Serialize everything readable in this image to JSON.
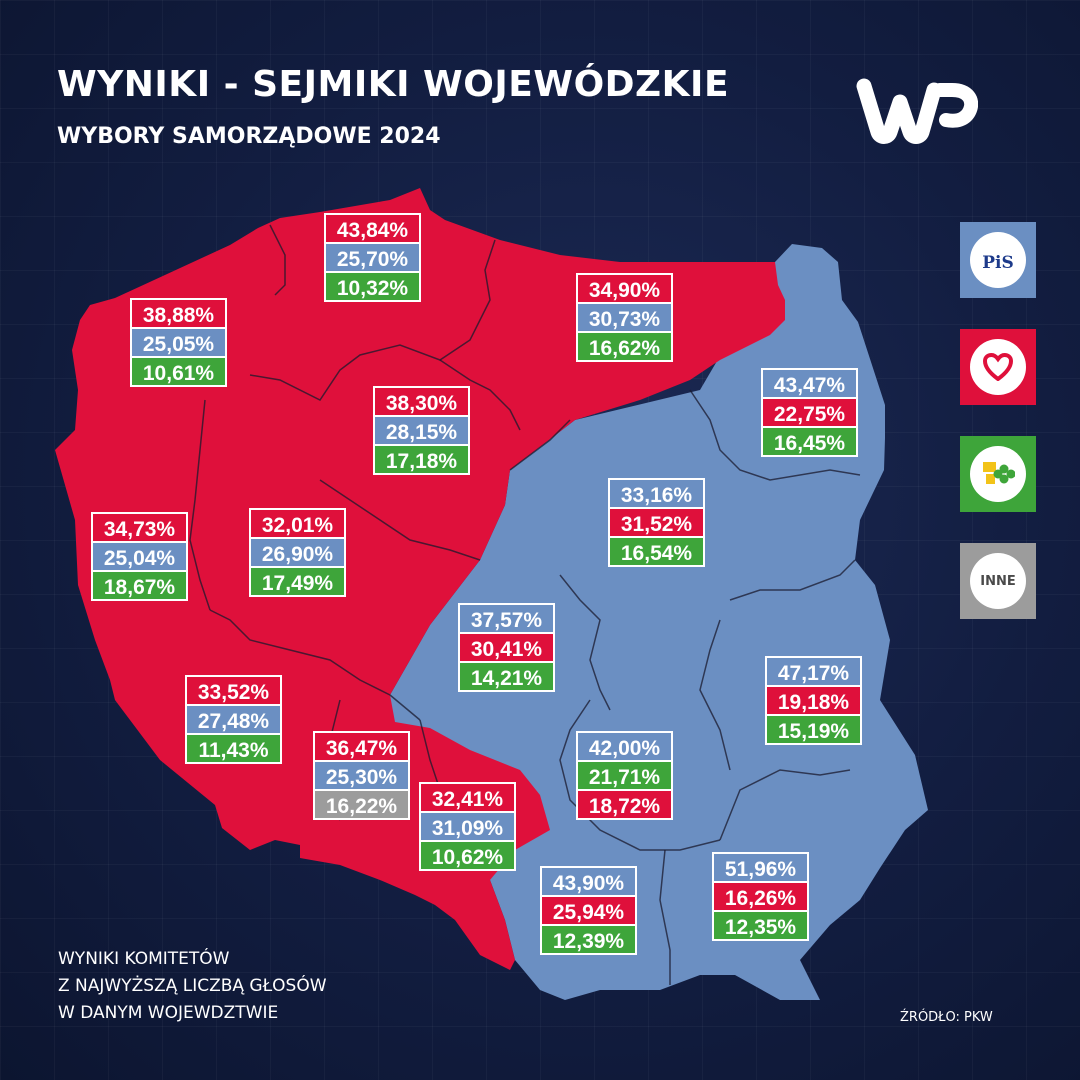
{
  "header": {
    "title": "WYNIKI - SEJMIKI WOJEWÓDZKIE",
    "subtitle": "WYBORY SAMORZĄDOWE  2024"
  },
  "colors": {
    "pis": "#6b8fc2",
    "ko": "#df103b",
    "td": "#3ea53a",
    "inne": "#9c9c9c",
    "background": "#142045"
  },
  "legend": [
    {
      "key": "pis",
      "label": "PiS",
      "icon": "pis-logo-icon"
    },
    {
      "key": "ko",
      "label": "",
      "icon": "heart-icon"
    },
    {
      "key": "td",
      "label": "",
      "icon": "trzecia-droga-icon"
    },
    {
      "key": "inne",
      "label": "INNE",
      "icon": "inne-icon"
    }
  ],
  "regions": [
    {
      "name": "zachodniopomorskie",
      "winner": "ko",
      "results": [
        {
          "party": "ko",
          "value": "38,88%"
        },
        {
          "party": "pis",
          "value": "25,05%"
        },
        {
          "party": "td",
          "value": "10,61%"
        }
      ]
    },
    {
      "name": "pomorskie",
      "winner": "ko",
      "results": [
        {
          "party": "ko",
          "value": "43,84%"
        },
        {
          "party": "pis",
          "value": "25,70%"
        },
        {
          "party": "td",
          "value": "10,32%"
        }
      ]
    },
    {
      "name": "warmińsko-mazurskie",
      "winner": "ko",
      "results": [
        {
          "party": "ko",
          "value": "34,90%"
        },
        {
          "party": "pis",
          "value": "30,73%"
        },
        {
          "party": "td",
          "value": "16,62%"
        }
      ]
    },
    {
      "name": "podlaskie",
      "winner": "pis",
      "results": [
        {
          "party": "pis",
          "value": "43,47%"
        },
        {
          "party": "ko",
          "value": "22,75%"
        },
        {
          "party": "td",
          "value": "16,45%"
        }
      ]
    },
    {
      "name": "kujawsko-pomorskie",
      "winner": "ko",
      "results": [
        {
          "party": "ko",
          "value": "38,30%"
        },
        {
          "party": "pis",
          "value": "28,15%"
        },
        {
          "party": "td",
          "value": "17,18%"
        }
      ]
    },
    {
      "name": "lubuskie",
      "winner": "ko",
      "results": [
        {
          "party": "ko",
          "value": "34,73%"
        },
        {
          "party": "pis",
          "value": "25,04%"
        },
        {
          "party": "td",
          "value": "18,67%"
        }
      ]
    },
    {
      "name": "wielkopolskie",
      "winner": "ko",
      "results": [
        {
          "party": "ko",
          "value": "32,01%"
        },
        {
          "party": "pis",
          "value": "26,90%"
        },
        {
          "party": "td",
          "value": "17,49%"
        }
      ]
    },
    {
      "name": "mazowieckie",
      "winner": "pis",
      "results": [
        {
          "party": "pis",
          "value": "33,16%"
        },
        {
          "party": "ko",
          "value": "31,52%"
        },
        {
          "party": "td",
          "value": "16,54%"
        }
      ]
    },
    {
      "name": "łódzkie",
      "winner": "pis",
      "results": [
        {
          "party": "pis",
          "value": "37,57%"
        },
        {
          "party": "ko",
          "value": "30,41%"
        },
        {
          "party": "td",
          "value": "14,21%"
        }
      ]
    },
    {
      "name": "lubelskie",
      "winner": "pis",
      "results": [
        {
          "party": "pis",
          "value": "47,17%"
        },
        {
          "party": "ko",
          "value": "19,18%"
        },
        {
          "party": "td",
          "value": "15,19%"
        }
      ]
    },
    {
      "name": "dolnośląskie",
      "winner": "ko",
      "results": [
        {
          "party": "ko",
          "value": "33,52%"
        },
        {
          "party": "pis",
          "value": "27,48%"
        },
        {
          "party": "td",
          "value": "11,43%"
        }
      ]
    },
    {
      "name": "opolskie",
      "winner": "ko",
      "results": [
        {
          "party": "ko",
          "value": "36,47%"
        },
        {
          "party": "pis",
          "value": "25,30%"
        },
        {
          "party": "inne",
          "value": "16,22%"
        }
      ]
    },
    {
      "name": "świętokrzyskie",
      "winner": "pis",
      "results": [
        {
          "party": "pis",
          "value": "42,00%"
        },
        {
          "party": "td",
          "value": "21,71%"
        },
        {
          "party": "ko",
          "value": "18,72%"
        }
      ]
    },
    {
      "name": "śląskie",
      "winner": "ko",
      "results": [
        {
          "party": "ko",
          "value": "32,41%"
        },
        {
          "party": "pis",
          "value": "31,09%"
        },
        {
          "party": "td",
          "value": "10,62%"
        }
      ]
    },
    {
      "name": "małopolskie",
      "winner": "pis",
      "results": [
        {
          "party": "pis",
          "value": "43,90%"
        },
        {
          "party": "ko",
          "value": "25,94%"
        },
        {
          "party": "td",
          "value": "12,39%"
        }
      ]
    },
    {
      "name": "podkarpackie",
      "winner": "pis",
      "results": [
        {
          "party": "pis",
          "value": "51,96%"
        },
        {
          "party": "ko",
          "value": "16,26%"
        },
        {
          "party": "td",
          "value": "12,35%"
        }
      ]
    }
  ],
  "footer": {
    "note_lines": [
      "WYNIKI KOMITETÓW",
      "Z NAJWYŻSZĄ LICZBĄ GŁOSÓW",
      "W DANYM WOJEWDZTWIE"
    ],
    "source": "ŹRÓDŁO: PKW"
  },
  "brand": {
    "logo": "wp-logo"
  }
}
